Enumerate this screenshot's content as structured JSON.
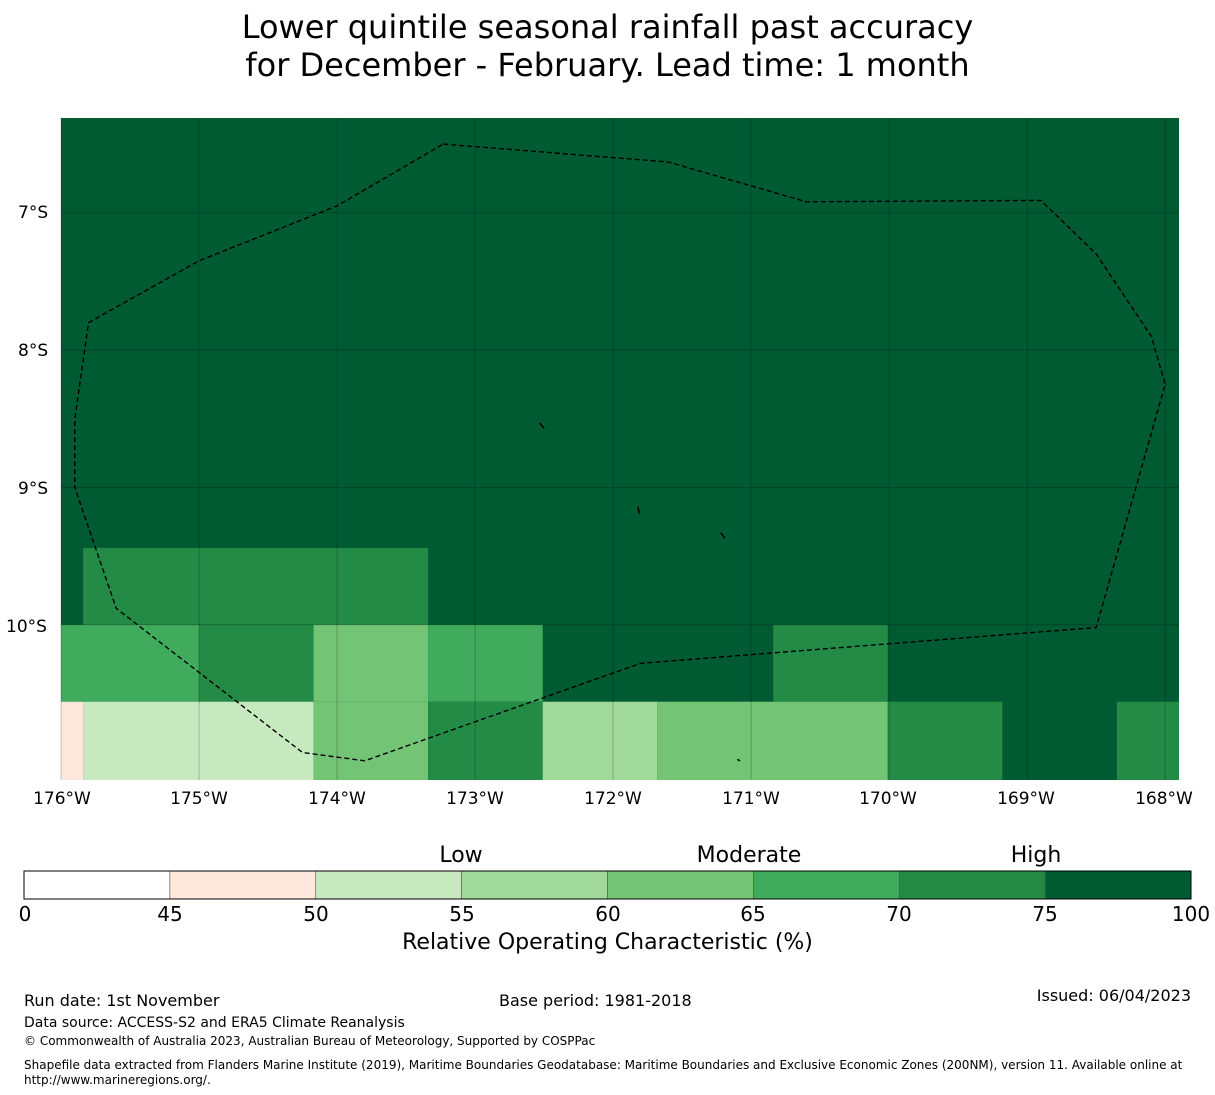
{
  "title": {
    "line1": "Lower quintile seasonal rainfall past accuracy",
    "line2": "for December - February. Lead time: 1 month"
  },
  "map": {
    "lat_ticks": [
      "7°S",
      "8°S",
      "9°S",
      "10°S"
    ],
    "lon_ticks": [
      "176°W",
      "175°W",
      "174°W",
      "173°W",
      "172°W",
      "171°W",
      "170°W",
      "169°W",
      "168°W"
    ],
    "extent": {
      "lon": [
        -176.0,
        -167.9
      ],
      "lat": [
        -11.13,
        -6.31
      ]
    },
    "colors": {
      "c45_50": "#fee8de",
      "c50_55": "#c7e9c0",
      "c55_60": "#a1d99b",
      "c60_65": "#74c476",
      "c65_70": "#41ab5d",
      "c70_75": "#238b45",
      "c75_100": "#005a32"
    },
    "background_class": "c75_100",
    "cells": [
      {
        "lon": [
          -175.84,
          -173.34
        ],
        "lat": [
          -10.0,
          -9.44
        ],
        "class": "c70_75"
      },
      {
        "lon": [
          -176.0,
          -175.0
        ],
        "lat": [
          -10.56,
          -10.0
        ],
        "class": "c65_70"
      },
      {
        "lon": [
          -175.0,
          -174.17
        ],
        "lat": [
          -10.56,
          -10.0
        ],
        "class": "c70_75"
      },
      {
        "lon": [
          -174.17,
          -173.34
        ],
        "lat": [
          -10.56,
          -10.0
        ],
        "class": "c60_65"
      },
      {
        "lon": [
          -173.34,
          -172.51
        ],
        "lat": [
          -10.56,
          -10.0
        ],
        "class": "c65_70"
      },
      {
        "lon": [
          -170.84,
          -170.01
        ],
        "lat": [
          -10.56,
          -10.0
        ],
        "class": "c70_75"
      },
      {
        "lon": [
          -176.0,
          -175.84
        ],
        "lat": [
          -11.13,
          -10.56
        ],
        "class": "c45_50"
      },
      {
        "lon": [
          -175.84,
          -174.17
        ],
        "lat": [
          -11.13,
          -10.56
        ],
        "class": "c50_55"
      },
      {
        "lon": [
          -174.17,
          -173.34
        ],
        "lat": [
          -11.13,
          -10.56
        ],
        "class": "c60_65"
      },
      {
        "lon": [
          -173.34,
          -172.51
        ],
        "lat": [
          -11.13,
          -10.56
        ],
        "class": "c70_75"
      },
      {
        "lon": [
          -172.51,
          -171.68
        ],
        "lat": [
          -11.13,
          -10.56
        ],
        "class": "c55_60"
      },
      {
        "lon": [
          -171.68,
          -170.01
        ],
        "lat": [
          -11.13,
          -10.56
        ],
        "class": "c60_65"
      },
      {
        "lon": [
          -170.01,
          -169.18
        ],
        "lat": [
          -11.13,
          -10.56
        ],
        "class": "c70_75"
      },
      {
        "lon": [
          -168.35,
          -167.9
        ],
        "lat": [
          -11.13,
          -10.56
        ],
        "class": "c70_75"
      }
    ],
    "eez_boundary": [
      [
        -173.23,
        -6.5
      ],
      [
        -171.6,
        -6.63
      ],
      [
        -170.6,
        -6.92
      ],
      [
        -168.9,
        -6.91
      ],
      [
        -168.5,
        -7.3
      ],
      [
        -168.1,
        -7.9
      ],
      [
        -168.0,
        -8.25
      ],
      [
        -168.5,
        -10.02
      ],
      [
        -171.8,
        -10.28
      ],
      [
        -173.8,
        -10.99
      ],
      [
        -174.25,
        -10.93
      ],
      [
        -175.6,
        -9.88
      ],
      [
        -175.9,
        -9.0
      ],
      [
        -175.9,
        -8.5
      ],
      [
        -175.8,
        -7.8
      ],
      [
        -175.0,
        -7.35
      ],
      [
        -174.0,
        -6.95
      ],
      [
        -173.23,
        -6.5
      ]
    ],
    "islands": [
      [
        [
          -172.53,
          -8.53
        ],
        [
          -172.5,
          -8.57
        ]
      ],
      [
        [
          -171.82,
          -9.14
        ],
        [
          -171.81,
          -9.19
        ]
      ],
      [
        [
          -171.22,
          -9.33
        ],
        [
          -171.19,
          -9.37
        ]
      ],
      [
        [
          -171.1,
          -10.98
        ],
        [
          -171.08,
          -10.99
        ]
      ]
    ]
  },
  "colorbar": {
    "category_labels": [
      "Low",
      "Moderate",
      "High"
    ],
    "ticks": [
      "0",
      "45",
      "50",
      "55",
      "60",
      "65",
      "70",
      "75",
      "100"
    ],
    "title": "Relative Operating Characteristic (%)",
    "segment_classes": [
      "c0_45",
      "c45_50",
      "c50_55",
      "c55_60",
      "c60_65",
      "c65_70",
      "c70_75",
      "c75_100"
    ],
    "segment_colors": [
      "#ffffff",
      "#fee8de",
      "#c7e9c0",
      "#a1d99b",
      "#74c476",
      "#41ab5d",
      "#238b45",
      "#005a32"
    ]
  },
  "footer": {
    "run_date": "Run date: 1st November",
    "base_period": "Base period: 1981-2018",
    "issued": "Issued: 06/04/2023",
    "data_source": "Data source: ACCESS-S2 and ERA5 Climate Reanalysis",
    "copyright": "© Commonwealth of Australia 2023, Australian Bureau of Meteorology, Supported by COSPPac",
    "shapefile_line1": "Shapefile data extracted from Flanders Marine Institute (2019), Maritime Boundaries Geodatabase: Maritime Boundaries and Exclusive Economic Zones (200NM), version 11. Available online at",
    "shapefile_line2": "http://www.marineregions.org/."
  }
}
